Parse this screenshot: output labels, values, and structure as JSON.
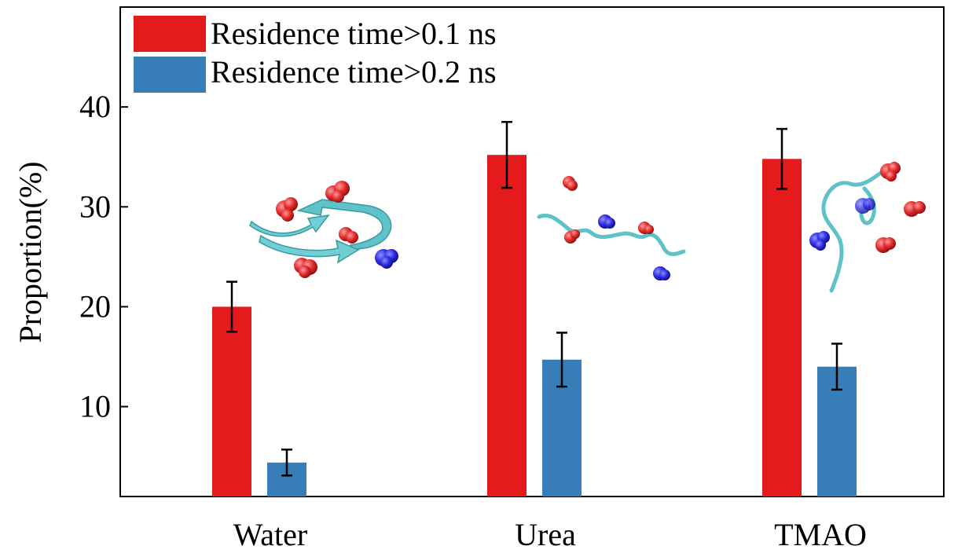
{
  "chart_data": {
    "type": "bar",
    "categories": [
      "Water",
      "Urea",
      "TMAO"
    ],
    "series": [
      {
        "name": "Residence time>0.1 ns",
        "color": "#e41a1c",
        "values": [
          20.0,
          35.2,
          34.8
        ],
        "errors": [
          2.5,
          3.3,
          3.0
        ]
      },
      {
        "name": "Residence time>0.2 ns",
        "color": "#377eb8",
        "values": [
          4.4,
          14.7,
          14.0
        ],
        "errors": [
          1.3,
          2.7,
          2.3
        ]
      }
    ],
    "xlabel": "",
    "ylabel": "Proportion(%)",
    "yticks": [
      10,
      20,
      30,
      40
    ],
    "ylim": [
      1,
      50
    ],
    "legend_position": "top-left",
    "grid": false,
    "insets": [
      {
        "category": "Water",
        "depicts": "beta-hairpin-ribbon-with-red-and-blue-molecules"
      },
      {
        "category": "Urea",
        "depicts": "extended-peptide-chain-with-red-and-blue-molecules"
      },
      {
        "category": "TMAO",
        "depicts": "coiled-peptide-chain-with-red-and-blue-molecules"
      }
    ]
  }
}
